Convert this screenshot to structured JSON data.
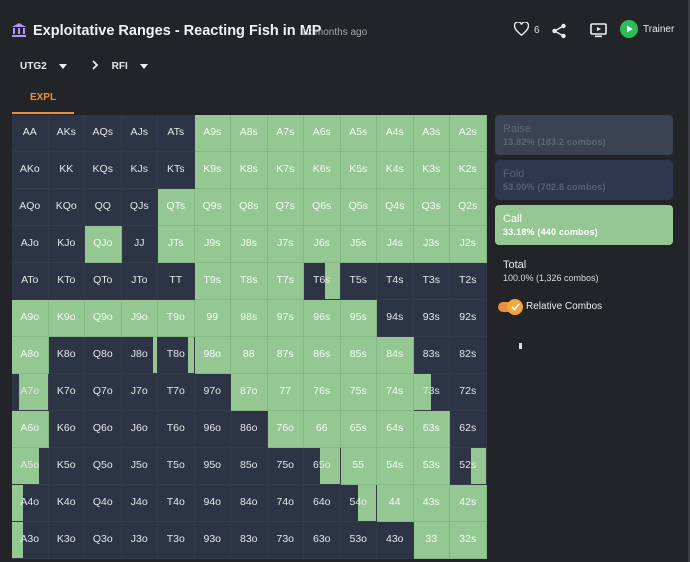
{
  "header": {
    "title": "Exploitative Ranges - Reacting Fish in MP",
    "subtitle": "12 months ago",
    "likes": "6",
    "trainer_label": "Trainer"
  },
  "positions": {
    "first": "UTG2",
    "second": "RFI"
  },
  "tab": "EXPL",
  "actions": {
    "raise": {
      "name": "Raise",
      "stat": "13.82% (183.2 combos)"
    },
    "fold": {
      "name": "Fold",
      "stat": "53.00% (702.8 combos)"
    },
    "call": {
      "name": "Call",
      "stat": "33.18% (440 combos)"
    },
    "total": {
      "name": "Total",
      "stat": "100.0% (1,326 combos)"
    }
  },
  "relative_combos_label": "Relative Combos",
  "colors": {
    "call": "#95c793",
    "fold": "#2d3446",
    "accent": "#e8913a"
  },
  "grid": [
    [
      "AA",
      "AKs",
      "AQs",
      "AJs",
      "ATs",
      "A9s",
      "A8s",
      "A7s",
      "A6s",
      "A5s",
      "A4s",
      "A3s",
      "A2s"
    ],
    [
      "AKo",
      "KK",
      "KQs",
      "KJs",
      "KTs",
      "K9s",
      "K8s",
      "K7s",
      "K6s",
      "K5s",
      "K4s",
      "K3s",
      "K2s"
    ],
    [
      "AQo",
      "KQo",
      "QQ",
      "QJs",
      "QTs",
      "Q9s",
      "Q8s",
      "Q7s",
      "Q6s",
      "Q5s",
      "Q4s",
      "Q3s",
      "Q2s"
    ],
    [
      "AJo",
      "KJo",
      "QJo",
      "JJ",
      "JTs",
      "J9s",
      "J8s",
      "J7s",
      "J6s",
      "J5s",
      "J4s",
      "J3s",
      "J2s"
    ],
    [
      "ATo",
      "KTo",
      "QTo",
      "JTo",
      "TT",
      "T9s",
      "T8s",
      "T7s",
      "T6s",
      "T5s",
      "T4s",
      "T3s",
      "T2s"
    ],
    [
      "A9o",
      "K9o",
      "Q9o",
      "J9o",
      "T9o",
      "99",
      "98s",
      "97s",
      "96s",
      "95s",
      "94s",
      "93s",
      "92s"
    ],
    [
      "A8o",
      "K8o",
      "Q8o",
      "J8o",
      "T8o",
      "98o",
      "88",
      "87s",
      "86s",
      "85s",
      "84s",
      "83s",
      "82s"
    ],
    [
      "A7o",
      "K7o",
      "Q7o",
      "J7o",
      "T7o",
      "97o",
      "87o",
      "77",
      "76s",
      "75s",
      "74s",
      "73s",
      "72s"
    ],
    [
      "A6o",
      "K6o",
      "Q6o",
      "J6o",
      "T6o",
      "96o",
      "86o",
      "76o",
      "66",
      "65s",
      "64s",
      "63s",
      "62s"
    ],
    [
      "A5o",
      "K5o",
      "Q5o",
      "J5o",
      "T5o",
      "95o",
      "85o",
      "75o",
      "65o",
      "55",
      "54s",
      "53s",
      "52s"
    ],
    [
      "A4o",
      "K4o",
      "Q4o",
      "J4o",
      "T4o",
      "94o",
      "84o",
      "74o",
      "64o",
      "54o",
      "44",
      "43s",
      "42s"
    ],
    [
      "A3o",
      "K3o",
      "Q3o",
      "J3o",
      "T3o",
      "93o",
      "83o",
      "73o",
      "63o",
      "53o",
      "43o",
      "33",
      "32s"
    ]
  ],
  "call_fraction": [
    [
      0,
      0,
      0,
      0,
      0,
      1,
      1,
      1,
      1,
      1,
      1,
      1,
      1
    ],
    [
      0,
      0,
      0,
      0,
      0,
      1,
      1,
      1,
      1,
      1,
      1,
      1,
      1
    ],
    [
      0,
      0,
      0,
      0,
      1,
      1,
      1,
      1,
      1,
      1,
      1,
      1,
      1
    ],
    [
      0,
      0,
      1,
      0,
      1,
      1,
      1,
      1,
      1,
      1,
      1,
      1,
      1
    ],
    [
      0,
      0,
      0,
      0,
      0,
      1,
      1,
      1,
      0.4,
      0,
      0,
      0,
      0
    ],
    [
      1,
      1,
      1,
      1,
      1,
      1,
      1,
      1,
      1,
      1,
      0,
      0,
      0
    ],
    [
      1,
      0,
      0,
      0.1,
      0.15,
      1,
      1,
      1,
      1,
      1,
      1,
      0,
      0
    ],
    [
      0.8,
      0,
      0,
      0,
      0,
      0,
      1,
      1,
      1,
      1,
      1,
      -0.5,
      0
    ],
    [
      1,
      0,
      0,
      0,
      0,
      0,
      0,
      1,
      1,
      1,
      1,
      1,
      0
    ],
    [
      -0.75,
      0,
      0,
      0,
      0,
      0,
      0,
      0,
      0.55,
      1,
      1,
      1,
      0.4
    ],
    [
      -0.3,
      0,
      0,
      0,
      0,
      0,
      0,
      0,
      0,
      0.5,
      1,
      1,
      1
    ],
    [
      -0.3,
      0,
      0,
      0,
      0,
      0,
      0,
      0,
      0,
      0,
      0,
      1,
      1
    ]
  ]
}
